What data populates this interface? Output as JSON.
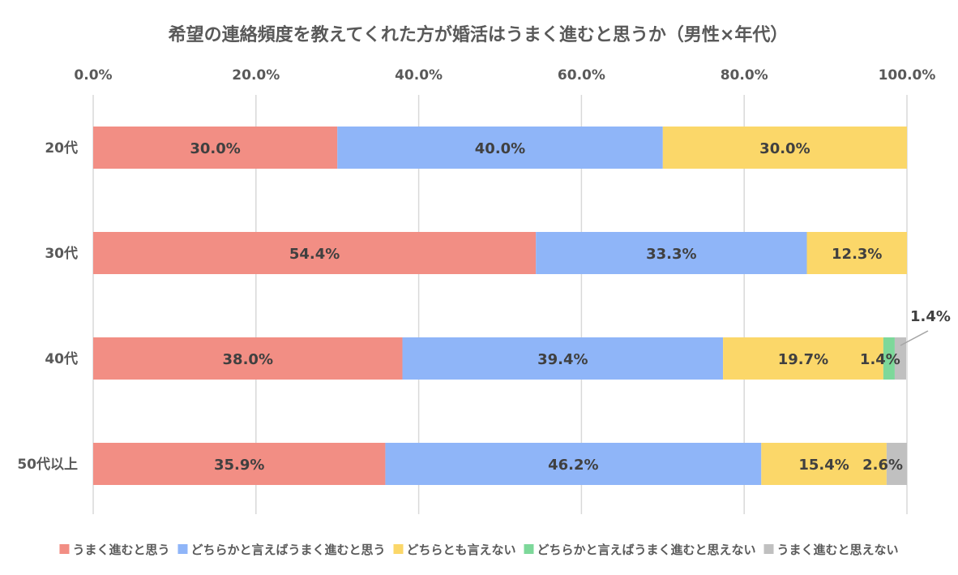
{
  "chart_data": {
    "type": "bar",
    "orientation": "horizontal",
    "stacked": true,
    "percent_stacked": true,
    "title": "希望の連絡頻度を教えてくれた方が婚活はうまく進むと思うか（男性×年代）",
    "categories": [
      "20代",
      "30代",
      "40代",
      "50代以上"
    ],
    "series": [
      {
        "name": "うまく進むと思う",
        "color": "#F28E84",
        "values": [
          30.0,
          54.4,
          38.0,
          35.9
        ],
        "labels": [
          "30.0%",
          "54.4%",
          "38.0%",
          "35.9%"
        ]
      },
      {
        "name": "どちらかと言えばうまく進むと思う",
        "color": "#8FB5F8",
        "values": [
          40.0,
          33.3,
          39.4,
          46.2
        ],
        "labels": [
          "40.0%",
          "33.3%",
          "39.4%",
          "46.2%"
        ]
      },
      {
        "name": "どちらとも言えない",
        "color": "#FBD769",
        "values": [
          30.0,
          12.3,
          19.7,
          15.4
        ],
        "labels": [
          "30.0%",
          "12.3%",
          "19.7%",
          "15.4%"
        ]
      },
      {
        "name": "どちらかと言えばうまく進むと思えない",
        "color": "#7DD89A",
        "values": [
          0,
          0,
          1.4,
          0
        ],
        "labels": [
          "",
          "",
          "1.4%",
          ""
        ]
      },
      {
        "name": "うまく進むと思えない",
        "color": "#C0C0C0",
        "values": [
          0,
          0,
          1.4,
          2.6
        ],
        "labels": [
          "",
          "",
          "1.4%",
          "2.6%"
        ]
      }
    ],
    "xlim": [
      0,
      100
    ],
    "x_ticks": [
      "0.0%",
      "20.0%",
      "40.0%",
      "60.0%",
      "80.0%",
      "100.0%"
    ],
    "x_tick_values": [
      0,
      20,
      40,
      60,
      80,
      100
    ],
    "x_axis_position": "top",
    "grid": true,
    "legend_position": "bottom",
    "xlabel": "",
    "ylabel": ""
  }
}
